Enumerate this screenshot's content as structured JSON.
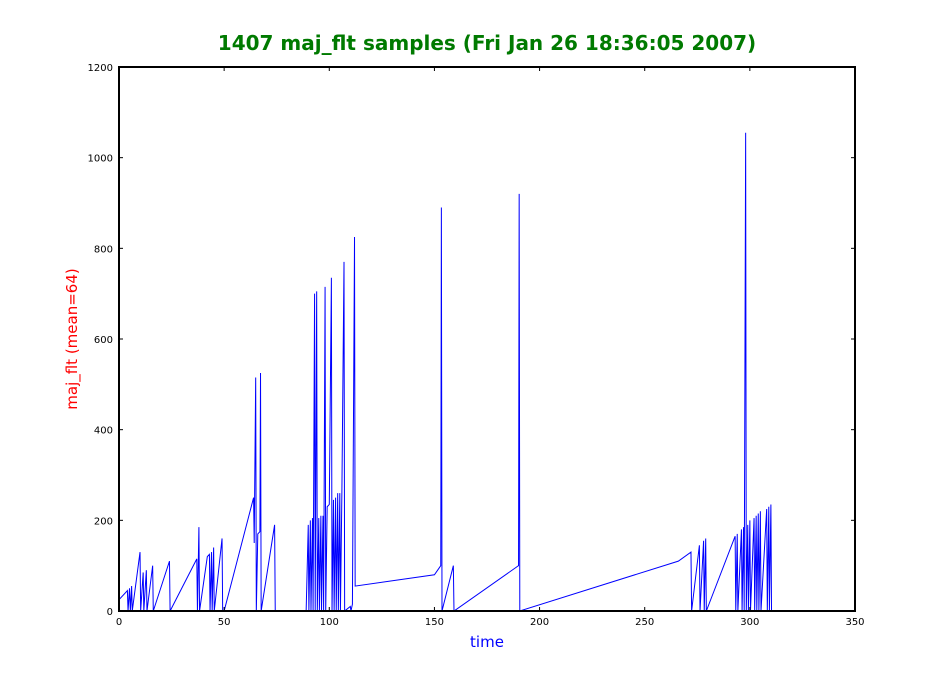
{
  "chart_data": {
    "type": "line",
    "title": "1407 maj_flt samples (Fri Jan 26 18:36:05 2007)",
    "xlabel": "time",
    "ylabel": "maj_flt (mean=64)",
    "xlim": [
      0,
      350
    ],
    "ylim": [
      0,
      1200
    ],
    "xticks": [
      "0",
      "50",
      "100",
      "150",
      "200",
      "250",
      "300",
      "350"
    ],
    "yticks": [
      "0",
      "200",
      "400",
      "600",
      "800",
      "1000",
      "1200"
    ],
    "grid": false,
    "legend": "none",
    "colors": {
      "title": "#007a00",
      "xlabel": "#0000ff",
      "ylabel": "#ff0000",
      "series": "#0000ff",
      "frame": "#000000"
    },
    "series": [
      {
        "values_xy": [
          [
            0,
            25
          ],
          [
            4,
            45
          ],
          [
            4.3,
            0
          ],
          [
            5,
            50
          ],
          [
            5.4,
            0
          ],
          [
            6,
            55
          ],
          [
            6.3,
            0
          ],
          [
            10,
            130
          ],
          [
            10.3,
            0
          ],
          [
            11.5,
            85
          ],
          [
            11.8,
            0
          ],
          [
            13,
            90
          ],
          [
            13.3,
            0
          ],
          [
            16,
            100
          ],
          [
            16.3,
            0
          ],
          [
            24,
            110
          ],
          [
            24.3,
            0
          ],
          [
            37,
            115
          ],
          [
            37.3,
            0
          ],
          [
            38,
            185
          ],
          [
            38.3,
            0
          ],
          [
            42,
            120
          ],
          [
            43,
            125
          ],
          [
            43.3,
            0
          ],
          [
            44,
            130
          ],
          [
            44.3,
            0
          ],
          [
            45,
            140
          ],
          [
            45.3,
            0
          ],
          [
            49,
            160
          ],
          [
            49.3,
            0
          ],
          [
            50,
            0
          ],
          [
            64,
            250
          ],
          [
            64.3,
            150
          ],
          [
            65,
            515
          ],
          [
            65.3,
            0
          ],
          [
            66,
            170
          ],
          [
            67,
            175
          ],
          [
            67.3,
            525
          ],
          [
            67.6,
            0
          ],
          [
            74,
            190
          ],
          [
            74.3,
            0
          ],
          [
            89,
            0
          ],
          [
            90,
            190
          ],
          [
            90.3,
            0
          ],
          [
            91,
            200
          ],
          [
            91.3,
            0
          ],
          [
            92,
            205
          ],
          [
            92.3,
            0
          ],
          [
            93,
            700
          ],
          [
            93.3,
            0
          ],
          [
            94,
            705
          ],
          [
            94.3,
            0
          ],
          [
            95,
            205
          ],
          [
            95.3,
            0
          ],
          [
            96,
            210
          ],
          [
            96.3,
            0
          ],
          [
            97,
            210
          ],
          [
            97.3,
            0
          ],
          [
            98,
            715
          ],
          [
            98.3,
            0
          ],
          [
            99,
            230
          ],
          [
            100,
            235
          ],
          [
            101,
            735
          ],
          [
            101.3,
            0
          ],
          [
            102,
            245
          ],
          [
            102.3,
            0
          ],
          [
            103,
            250
          ],
          [
            103.3,
            0
          ],
          [
            104,
            260
          ],
          [
            104.3,
            0
          ],
          [
            105,
            260
          ],
          [
            105.3,
            0
          ],
          [
            106,
            265
          ],
          [
            107,
            770
          ],
          [
            107.3,
            0
          ],
          [
            110,
            10
          ],
          [
            110.3,
            0
          ],
          [
            111,
            15
          ],
          [
            112,
            825
          ],
          [
            112.3,
            55
          ],
          [
            150,
            80
          ],
          [
            153,
            100
          ],
          [
            153.3,
            890
          ],
          [
            153.6,
            0
          ],
          [
            159,
            100
          ],
          [
            159.3,
            0
          ],
          [
            190,
            100
          ],
          [
            190.3,
            920
          ],
          [
            190.6,
            0
          ],
          [
            266,
            110
          ],
          [
            272,
            130
          ],
          [
            272.3,
            0
          ],
          [
            276,
            145
          ],
          [
            276.3,
            0
          ],
          [
            278,
            155
          ],
          [
            278.3,
            0
          ],
          [
            279,
            160
          ],
          [
            279.3,
            0
          ],
          [
            293,
            165
          ],
          [
            293.3,
            0
          ],
          [
            294,
            170
          ],
          [
            294.3,
            0
          ],
          [
            296,
            180
          ],
          [
            296.3,
            0
          ],
          [
            297,
            185
          ],
          [
            297.3,
            0
          ],
          [
            298,
            1055
          ],
          [
            298.3,
            0
          ],
          [
            299,
            190
          ],
          [
            299.3,
            0
          ],
          [
            300,
            200
          ],
          [
            300.3,
            0
          ],
          [
            302,
            205
          ],
          [
            302.3,
            0
          ],
          [
            303,
            210
          ],
          [
            303.3,
            0
          ],
          [
            304,
            215
          ],
          [
            304.3,
            0
          ],
          [
            305,
            220
          ],
          [
            305.3,
            0
          ],
          [
            308,
            225
          ],
          [
            308.3,
            0
          ],
          [
            309,
            230
          ],
          [
            309.3,
            0
          ],
          [
            310,
            235
          ],
          [
            310.3,
            0
          ],
          [
            350,
            0
          ]
        ]
      }
    ]
  }
}
